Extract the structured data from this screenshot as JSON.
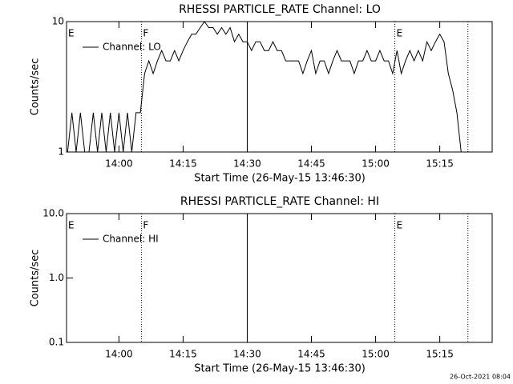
{
  "chart_data": [
    {
      "type": "line",
      "title": "RHESSI PARTICLE_RATE Channel: LO",
      "xlabel": "Start Time (26-May-15 13:46:30)",
      "ylabel": "Counts/sec",
      "log_y": true,
      "xlim": [
        "13:47:45",
        "15:27:15"
      ],
      "xticks": [
        "14:00",
        "14:15",
        "14:30",
        "14:45",
        "15:00",
        "15:15"
      ],
      "ylim": [
        1,
        10
      ],
      "yticks": [
        1,
        10
      ],
      "legend": "upper left",
      "markers": [
        {
          "x": "13:47:45",
          "label": "E",
          "style": "dotted"
        },
        {
          "x": "14:05:15",
          "label": "F",
          "style": "dotted"
        },
        {
          "x": "14:30:00",
          "style": "solid"
        },
        {
          "x": "15:04:30",
          "label": "E",
          "style": "dotted"
        },
        {
          "x": "15:21:35",
          "style": "dotted"
        }
      ],
      "x": [
        "13:48",
        "13:49",
        "13:50",
        "13:51",
        "13:52",
        "13:53",
        "13:54",
        "13:55",
        "13:56",
        "13:57",
        "13:58",
        "13:59",
        "14:00",
        "14:01",
        "14:02",
        "14:03",
        "14:04",
        "14:05",
        "14:06",
        "14:07",
        "14:08",
        "14:09",
        "14:10",
        "14:11",
        "14:12",
        "14:13",
        "14:14",
        "14:15",
        "14:16",
        "14:17",
        "14:18",
        "14:19",
        "14:20",
        "14:21",
        "14:22",
        "14:23",
        "14:24",
        "14:25",
        "14:26",
        "14:27",
        "14:28",
        "14:29",
        "14:30",
        "14:31",
        "14:32",
        "14:33",
        "14:34",
        "14:35",
        "14:36",
        "14:37",
        "14:38",
        "14:39",
        "14:40",
        "14:41",
        "14:42",
        "14:43",
        "14:44",
        "14:45",
        "14:46",
        "14:47",
        "14:48",
        "14:49",
        "14:50",
        "14:51",
        "14:52",
        "14:53",
        "14:54",
        "14:55",
        "14:56",
        "14:57",
        "14:58",
        "14:59",
        "15:00",
        "15:01",
        "15:02",
        "15:03",
        "15:04",
        "15:05",
        "15:06",
        "15:07",
        "15:08",
        "15:09",
        "15:10",
        "15:11",
        "15:12",
        "15:13",
        "15:14",
        "15:15",
        "15:16",
        "15:17",
        "15:18",
        "15:19",
        "15:20"
      ],
      "series": [
        {
          "name": "Channel: LO",
          "color": "#000000",
          "values": [
            1,
            2,
            1,
            2,
            1,
            1,
            2,
            1,
            2,
            1,
            2,
            1,
            2,
            1,
            2,
            1,
            2,
            2,
            4,
            5,
            4,
            5,
            6,
            5,
            5,
            6,
            5,
            6,
            7,
            8,
            8,
            9,
            10,
            9,
            9,
            8,
            9,
            8,
            9,
            7,
            8,
            7,
            7,
            6,
            7,
            7,
            6,
            6,
            7,
            6,
            6,
            5,
            5,
            5,
            5,
            4,
            5,
            6,
            4,
            5,
            5,
            4,
            5,
            6,
            5,
            5,
            5,
            4,
            5,
            5,
            6,
            5,
            5,
            6,
            5,
            5,
            4,
            6,
            4,
            5,
            6,
            5,
            6,
            5,
            7,
            6,
            7,
            8,
            7,
            4,
            3,
            2,
            1
          ]
        }
      ]
    },
    {
      "type": "line",
      "title": "RHESSI PARTICLE_RATE Channel: HI",
      "xlabel": "Start Time (26-May-15 13:46:30)",
      "ylabel": "Counts/sec",
      "log_y": true,
      "xlim": [
        "13:47:45",
        "15:27:15"
      ],
      "xticks": [
        "14:00",
        "14:15",
        "14:30",
        "14:45",
        "15:00",
        "15:15"
      ],
      "ylim": [
        0.1,
        10
      ],
      "yticks": [
        0.1,
        {
          "value": 1,
          "label": "1.0"
        },
        {
          "value": 10,
          "label": "10.0"
        }
      ],
      "legend": "upper left",
      "markers": [
        {
          "x": "13:47:45",
          "label": "E",
          "style": "dotted"
        },
        {
          "x": "14:05:15",
          "label": "F",
          "style": "dotted"
        },
        {
          "x": "14:30:00",
          "style": "solid"
        },
        {
          "x": "15:04:30",
          "label": "E",
          "style": "dotted"
        },
        {
          "x": "15:21:35",
          "style": "dotted"
        }
      ],
      "x": [],
      "series": [
        {
          "name": "Channel: HI",
          "color": "#000000",
          "values": []
        }
      ]
    }
  ],
  "footer": "26-Oct-2021 08:04"
}
